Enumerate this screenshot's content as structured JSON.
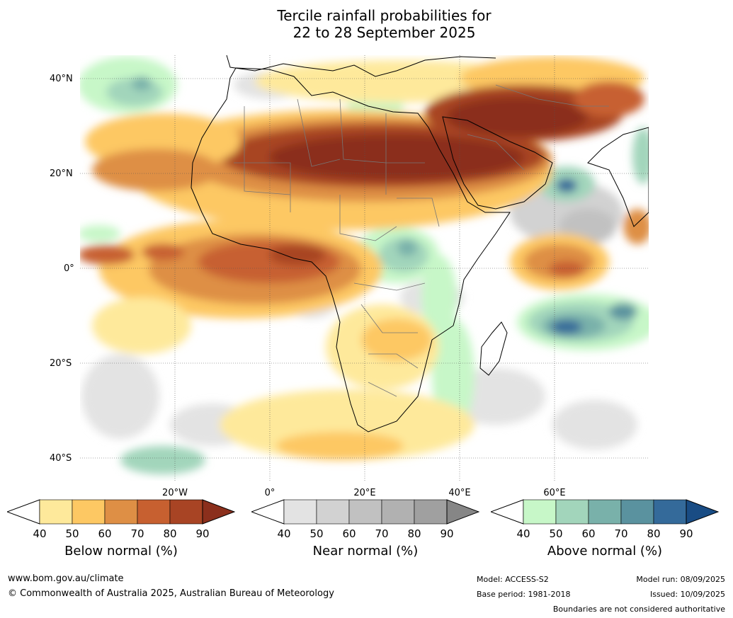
{
  "title_line1": "Tercile rainfall probabilities for",
  "title_line2": "22 to 28 September 2025",
  "map": {
    "lat_labels": [
      "40°N",
      "20°N",
      "0°",
      "20°S",
      "40°S"
    ],
    "lon_labels": [
      "20°W",
      "0°",
      "20°E",
      "40°E",
      "60°E"
    ]
  },
  "colorbars": [
    {
      "name": "below",
      "label": "Below normal (%)",
      "ticks": [
        "40",
        "50",
        "60",
        "70",
        "80",
        "90"
      ],
      "colors": [
        "#ffffff",
        "#fee99b",
        "#fdc863",
        "#de8f45",
        "#c76030",
        "#a84424",
        "#8b2f1c"
      ]
    },
    {
      "name": "near",
      "label": "Near normal (%)",
      "ticks": [
        "40",
        "50",
        "60",
        "70",
        "80",
        "90"
      ],
      "colors": [
        "#ffffff",
        "#e3e3e3",
        "#d2d2d2",
        "#c1c1c1",
        "#b1b1b1",
        "#a0a0a0",
        "#868686"
      ]
    },
    {
      "name": "above",
      "label": "Above normal (%)",
      "ticks": [
        "40",
        "50",
        "60",
        "70",
        "80",
        "90"
      ],
      "colors": [
        "#ffffff",
        "#c7f7c8",
        "#a2d5bb",
        "#79b1aa",
        "#5a929f",
        "#346a9a",
        "#194c84"
      ]
    }
  ],
  "footer": {
    "url": "www.bom.gov.au/climate",
    "copyright": "© Commonwealth of Australia 2025, Australian Bureau of Meteorology",
    "model": "Model: ACCESS-S2",
    "base_period": "Base period: 1981-2018",
    "model_run": "Model run: 08/09/2025",
    "issued": "Issued: 10/09/2025",
    "disclaimer": "Boundaries are not considered authoritative"
  }
}
